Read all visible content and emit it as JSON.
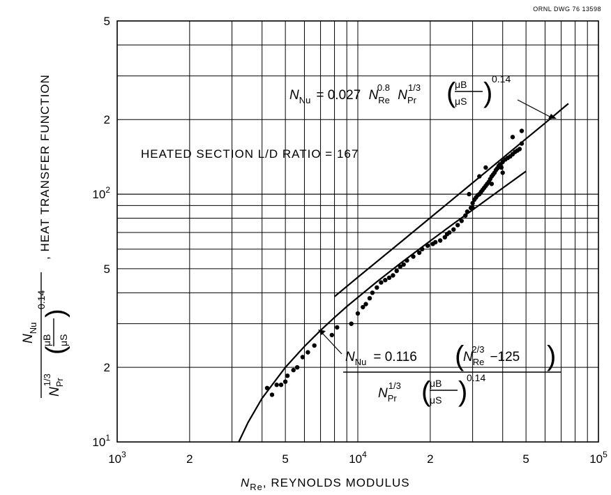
{
  "drawing_id": "ORNL DWG 76 13598",
  "chart_data": {
    "type": "scatter",
    "x_scale": "log",
    "y_scale": "log",
    "xlim": [
      1000,
      100000
    ],
    "ylim": [
      10,
      500
    ],
    "grid": true,
    "xlabel": "N_Re, REYNOLDS MODULUS",
    "xlabel_symbol": "N",
    "xlabel_symbol_sub": "Re",
    "xlabel_text": ", REYNOLDS MODULUS",
    "ylabel_text": ", HEAT TRANSFER FUNCTION",
    "x_ticks": [
      {
        "value": 1000,
        "base": "10",
        "exp": "3"
      },
      {
        "value": 2000,
        "base": "2",
        "exp": ""
      },
      {
        "value": 5000,
        "base": "5",
        "exp": ""
      },
      {
        "value": 10000,
        "base": "10",
        "exp": "4"
      },
      {
        "value": 20000,
        "base": "2",
        "exp": ""
      },
      {
        "value": 50000,
        "base": "5",
        "exp": ""
      },
      {
        "value": 100000,
        "base": "10",
        "exp": "5"
      }
    ],
    "y_ticks": [
      {
        "value": 10,
        "base": "10",
        "exp": "1"
      },
      {
        "value": 20,
        "base": "2",
        "exp": ""
      },
      {
        "value": 50,
        "base": "5",
        "exp": ""
      },
      {
        "value": 100,
        "base": "10",
        "exp": "2"
      },
      {
        "value": 200,
        "base": "2",
        "exp": ""
      },
      {
        "value": 500,
        "base": "5",
        "exp": ""
      }
    ],
    "annotation": "HEATED SECTION L/D RATIO = 167",
    "equation_1": {
      "lhs": "N",
      "lhs_sub": "Nu",
      "coef": "= 0.027",
      "re_exp": "0.8",
      "pr_exp": "1/3",
      "ratio_num": "μB",
      "ratio_den": "μS",
      "ratio_exp": "0.14"
    },
    "equation_2": {
      "lhs": "N",
      "lhs_sub": "Nu",
      "coef": "= 0.116",
      "re_exp": "2/3",
      "const": "−125",
      "pr_exp": "1/3",
      "ratio_num": "μB",
      "ratio_den": "μS",
      "ratio_exp": "0.14"
    },
    "series": [
      {
        "kind": "line",
        "x": [
          8000,
          10000,
          15000,
          20000,
          30000,
          40000,
          50000,
          60000,
          70000,
          75000
        ],
        "y": [
          38.6,
          46.2,
          63.8,
          80.3,
          111.1,
          139.8,
          167.2,
          193.6,
          219.3,
          231.9
        ]
      },
      {
        "kind": "line",
        "x": [
          3200,
          3500,
          4000,
          5000,
          6000,
          7000,
          8000,
          9000,
          10000,
          12000,
          15000,
          20000,
          25000,
          30000,
          40000,
          50000
        ],
        "y": [
          10.0,
          12.0,
          15.0,
          20.0,
          24.3,
          28.2,
          31.8,
          35.2,
          38.3,
          44.3,
          52.5,
          64.8,
          76.0,
          86.4,
          105.8,
          123.7
        ]
      },
      {
        "kind": "points",
        "x": [
          4200,
          4400,
          4600,
          4800,
          5000,
          5100,
          5400,
          5600,
          5900,
          6200,
          6600,
          7800,
          8200,
          9400,
          10000,
          10500,
          10800,
          11200,
          11500,
          12000,
          12500,
          13000,
          13500,
          14000,
          14500,
          15000,
          15500,
          16000,
          17000,
          18000,
          18500,
          19500,
          20500,
          21000,
          22000,
          23000,
          23500,
          24000,
          25000,
          26000,
          27000,
          28000,
          28500,
          29500,
          30000,
          30500,
          31000,
          31500,
          32000,
          32500,
          33000,
          33500,
          34000,
          34500,
          35000,
          35500,
          36000,
          36500,
          37000,
          37500,
          38000,
          38500,
          39000,
          39500,
          40000,
          41000,
          42000,
          43000,
          44000,
          45000,
          46000,
          47000,
          48000,
          44000,
          48000,
          40000,
          36000,
          30000,
          29000,
          32000,
          34000
        ],
        "y": [
          16.5,
          15.5,
          17,
          17,
          17.5,
          18.5,
          19.5,
          20,
          22,
          23,
          24.5,
          27,
          29,
          30,
          33,
          35,
          36,
          38,
          40,
          42,
          44,
          45,
          46,
          47,
          49,
          51,
          52,
          54,
          56,
          58,
          60,
          62,
          63,
          64,
          65,
          67,
          69,
          70,
          72,
          75,
          78,
          82,
          85,
          88,
          92,
          95,
          97,
          99,
          100,
          102,
          104,
          106,
          108,
          110,
          112,
          115,
          118,
          120,
          122,
          125,
          127,
          130,
          132,
          128,
          135,
          138,
          140,
          142,
          145,
          148,
          150,
          152,
          160,
          170,
          180,
          122,
          110,
          88,
          100,
          118,
          128
        ]
      }
    ]
  }
}
